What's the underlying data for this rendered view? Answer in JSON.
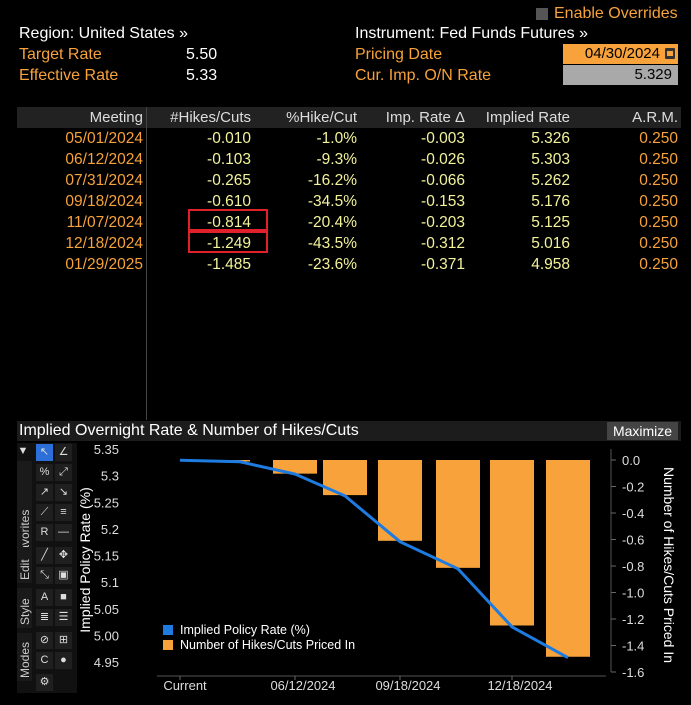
{
  "header": {
    "enable_overrides": "Enable Overrides",
    "region": "Region: United States »",
    "instrument": "Instrument: Fed Funds Futures »",
    "target_rate_label": "Target Rate",
    "target_rate_value": "5.50",
    "effective_rate_label": "Effective Rate",
    "effective_rate_value": "5.33",
    "pricing_date_label": "Pricing Date",
    "pricing_date_value": "04/30/2024",
    "onrate_label": "Cur. Imp. O/N Rate",
    "onrate_value": "5.329"
  },
  "table": {
    "headers": [
      "Meeting",
      "#Hikes/Cuts",
      "%Hike/Cut",
      "Imp. Rate Δ",
      "Implied Rate",
      "A.R.M."
    ],
    "rows": [
      [
        "05/01/2024",
        "-0.010",
        "-1.0%",
        "-0.003",
        "5.326",
        "0.250"
      ],
      [
        "06/12/2024",
        "-0.103",
        "-9.3%",
        "-0.026",
        "5.303",
        "0.250"
      ],
      [
        "07/31/2024",
        "-0.265",
        "-16.2%",
        "-0.066",
        "5.262",
        "0.250"
      ],
      [
        "09/18/2024",
        "-0.610",
        "-34.5%",
        "-0.153",
        "5.176",
        "0.250"
      ],
      [
        "11/07/2024",
        "-0.814",
        "-20.4%",
        "-0.203",
        "5.125",
        "0.250"
      ],
      [
        "12/18/2024",
        "-1.249",
        "-43.5%",
        "-0.312",
        "5.016",
        "0.250"
      ],
      [
        "01/29/2025",
        "-1.485",
        "-23.6%",
        "-0.371",
        "4.958",
        "0.250"
      ]
    ]
  },
  "chart": {
    "title": "Implied Overnight Rate & Number of Hikes/Cuts",
    "maximize_label": "Maximize",
    "toolbar_tabs": [
      "Favorites",
      "Edit",
      "Style",
      "Modes"
    ]
  },
  "chart_data": {
    "type": "bar",
    "categories": [
      "Current",
      "05/01/2024",
      "06/12/2024",
      "07/31/2024",
      "09/18/2024",
      "11/07/2024",
      "12/18/2024",
      "01/29/2025"
    ],
    "x_tick_labels": [
      "Current",
      "06/12/2024",
      "09/18/2024",
      "12/18/2024"
    ],
    "series": [
      {
        "name": "Implied Policy Rate (%)",
        "type": "line",
        "axis": "left",
        "color": "#1e7be0",
        "values": [
          5.329,
          5.326,
          5.303,
          5.262,
          5.176,
          5.125,
          5.016,
          4.958
        ]
      },
      {
        "name": "Number of Hikes/Cuts Priced In",
        "type": "bar",
        "axis": "right",
        "color": "#f7a23b",
        "values": [
          0,
          -0.01,
          -0.103,
          -0.265,
          -0.61,
          -0.814,
          -1.249,
          -1.485
        ]
      }
    ],
    "ylabel_left": "Implied Policy Rate (%)",
    "ylabel_right": "Number of Hikes/Cuts Priced In",
    "ylim_left": [
      4.95,
      5.35
    ],
    "yticks_left": [
      "5.35",
      "5.3",
      "5.25",
      "5.2",
      "5.15",
      "5.1",
      "5.05",
      "5.0",
      "4.95"
    ],
    "ylim_right": [
      -1.6,
      0.0
    ],
    "yticks_right": [
      "0.0",
      "-0.2",
      "-0.4",
      "-0.6",
      "-0.8",
      "-1.0",
      "-1.2",
      "-1.4",
      "-1.6"
    ],
    "legend_position": "bottom-left"
  }
}
